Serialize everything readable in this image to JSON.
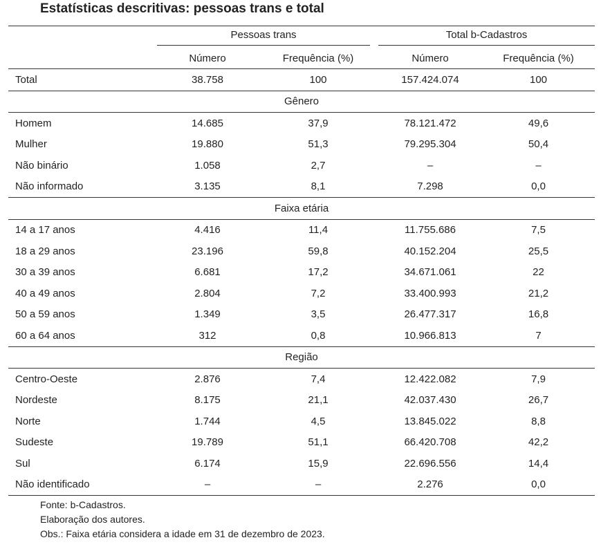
{
  "title": "Estatísticas descritivas: pessoas trans e total",
  "table": {
    "groups": [
      "Pessoas trans",
      "Total b-Cadastros"
    ],
    "columns": [
      "Número",
      "Frequência (%)",
      "Número",
      "Frequência (%)"
    ],
    "total": [
      "Total",
      "38.758",
      "100",
      "157.424.074",
      "100"
    ],
    "sections": [
      {
        "title": "Gênero",
        "rows": [
          [
            "Homem",
            "14.685",
            "37,9",
            "78.121.472",
            "49,6"
          ],
          [
            "Mulher",
            "19.880",
            "51,3",
            "79.295.304",
            "50,4"
          ],
          [
            "Não binário",
            "1.058",
            "2,7",
            "–",
            "–"
          ],
          [
            "Não informado",
            "3.135",
            "8,1",
            "7.298",
            "0,0"
          ]
        ]
      },
      {
        "title": "Faixa etária",
        "rows": [
          [
            "14 a 17 anos",
            "4.416",
            "11,4",
            "11.755.686",
            "7,5"
          ],
          [
            "18 a 29 anos",
            "23.196",
            "59,8",
            "40.152.204",
            "25,5"
          ],
          [
            "30 a 39 anos",
            "6.681",
            "17,2",
            "34.671.061",
            "22"
          ],
          [
            "40 a 49 anos",
            "2.804",
            "7,2",
            "33.400.993",
            "21,2"
          ],
          [
            "50 a 59 anos",
            "1.349",
            "3,5",
            "26.477.317",
            "16,8"
          ],
          [
            "60 a 64 anos",
            "312",
            "0,8",
            "10.966.813",
            "7"
          ]
        ]
      },
      {
        "title": "Região",
        "rows": [
          [
            "Centro-Oeste",
            "2.876",
            "7,4",
            "12.422.082",
            "7,9"
          ],
          [
            "Nordeste",
            "8.175",
            "21,1",
            "42.037.430",
            "26,7"
          ],
          [
            "Norte",
            "1.744",
            "4,5",
            "13.845.022",
            "8,8"
          ],
          [
            "Sudeste",
            "19.789",
            "51,1",
            "66.420.708",
            "42,2"
          ],
          [
            "Sul",
            "6.174",
            "15,9",
            "22.696.556",
            "14,4"
          ],
          [
            "Não identificado",
            "–",
            "–",
            "2.276",
            "0,0"
          ]
        ]
      }
    ]
  },
  "notes": [
    "Fonte: b-Cadastros.",
    "Elaboração dos autores.",
    "Obs.: Faixa etária considera a idade em 31 de dezembro de 2023."
  ]
}
